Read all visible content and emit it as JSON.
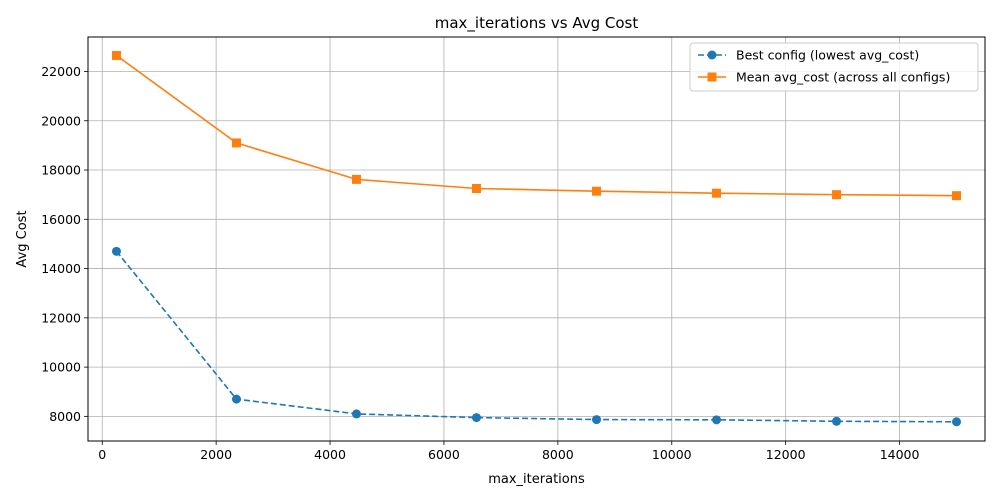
{
  "chart_data": {
    "type": "line",
    "title": "max_iterations vs Avg Cost",
    "xlabel": "max_iterations",
    "ylabel": "Avg Cost",
    "xlim": [
      -250,
      15500
    ],
    "ylim": [
      7000,
      23400
    ],
    "xticks": [
      0,
      2000,
      4000,
      6000,
      8000,
      10000,
      12000,
      14000
    ],
    "yticks": [
      8000,
      10000,
      12000,
      14000,
      16000,
      18000,
      20000,
      22000
    ],
    "grid": true,
    "legend_position": "top-right",
    "x": [
      250,
      2357,
      4464,
      6571,
      8679,
      10786,
      12893,
      15000
    ],
    "series": [
      {
        "name": "Best config (lowest avg_cost)",
        "color": "#1f77b4",
        "line_style": "dashed",
        "marker": "circle",
        "values": [
          14700,
          8700,
          8100,
          7950,
          7870,
          7860,
          7800,
          7780
        ]
      },
      {
        "name": "Mean avg_cost (across all configs)",
        "color": "#ff7f0e",
        "line_style": "solid",
        "marker": "square",
        "values": [
          22650,
          19100,
          17620,
          17250,
          17140,
          17060,
          17000,
          16960
        ]
      }
    ]
  }
}
